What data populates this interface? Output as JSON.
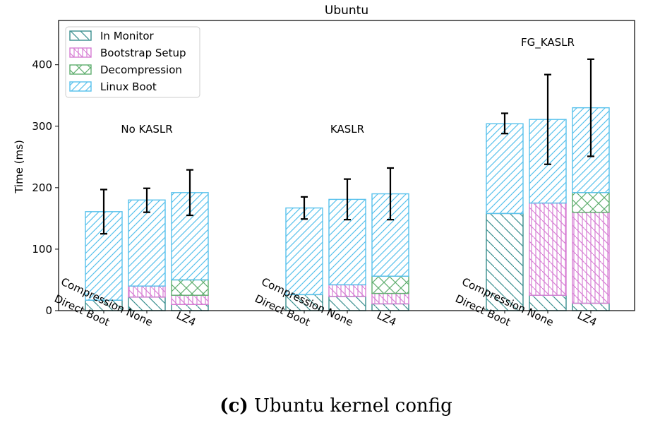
{
  "caption": {
    "label": "(c)",
    "text": "Ubuntu kernel config"
  },
  "chart_data": {
    "type": "bar",
    "stacked": true,
    "title": "Ubuntu",
    "xlabel": "",
    "ylabel": "Time (ms)",
    "ylim": [
      0,
      472
    ],
    "yticks": [
      0,
      100,
      200,
      300,
      400
    ],
    "grid": false,
    "legend": "top-left",
    "groups": [
      {
        "name": "No KASLR",
        "bars": [
          {
            "label": "Direct Boot",
            "in_monitor": 17,
            "bootstrap_setup": 0,
            "decompression": 0,
            "linux_boot": 144,
            "total": 161,
            "err_low": 125,
            "err_high": 197
          },
          {
            "label": "Compression None",
            "in_monitor": 22,
            "bootstrap_setup": 18,
            "decompression": 0,
            "linux_boot": 140,
            "total": 180,
            "err_low": 160,
            "err_high": 199
          },
          {
            "label": "LZ4",
            "in_monitor": 10,
            "bootstrap_setup": 15,
            "decompression": 25,
            "linux_boot": 142,
            "total": 192,
            "err_low": 155,
            "err_high": 229
          }
        ]
      },
      {
        "name": "KASLR",
        "bars": [
          {
            "label": "Direct Boot",
            "in_monitor": 26,
            "bootstrap_setup": 0,
            "decompression": 0,
            "linux_boot": 141,
            "total": 167,
            "err_low": 149,
            "err_high": 185
          },
          {
            "label": "Compression None",
            "in_monitor": 23,
            "bootstrap_setup": 19,
            "decompression": 0,
            "linux_boot": 139,
            "total": 181,
            "err_low": 148,
            "err_high": 214
          },
          {
            "label": "LZ4",
            "in_monitor": 11,
            "bootstrap_setup": 17,
            "decompression": 28,
            "linux_boot": 134,
            "total": 190,
            "err_low": 148,
            "err_high": 232
          }
        ]
      },
      {
        "name": "FG_KASLR",
        "bars": [
          {
            "label": "Direct Boot",
            "in_monitor": 158,
            "bootstrap_setup": 0,
            "decompression": 0,
            "linux_boot": 146,
            "total": 304,
            "err_low": 288,
            "err_high": 321
          },
          {
            "label": "Compression None",
            "in_monitor": 25,
            "bootstrap_setup": 150,
            "decompression": 0,
            "linux_boot": 136,
            "total": 311,
            "err_low": 238,
            "err_high": 384
          },
          {
            "label": "LZ4",
            "in_monitor": 12,
            "bootstrap_setup": 148,
            "decompression": 32,
            "linux_boot": 138,
            "total": 330,
            "err_low": 251,
            "err_high": 409
          }
        ]
      }
    ],
    "series": [
      {
        "key": "in_monitor",
        "name": "In Monitor",
        "color": "#3a8f8f",
        "pattern": "backslash"
      },
      {
        "key": "bootstrap_setup",
        "name": "Bootstrap Setup",
        "color": "#d77fd4",
        "pattern": "grid-diag"
      },
      {
        "key": "decompression",
        "name": "Decompression",
        "color": "#5fae6e",
        "pattern": "cross"
      },
      {
        "key": "linux_boot",
        "name": "Linux Boot",
        "color": "#58c1ec",
        "pattern": "slash"
      }
    ]
  }
}
